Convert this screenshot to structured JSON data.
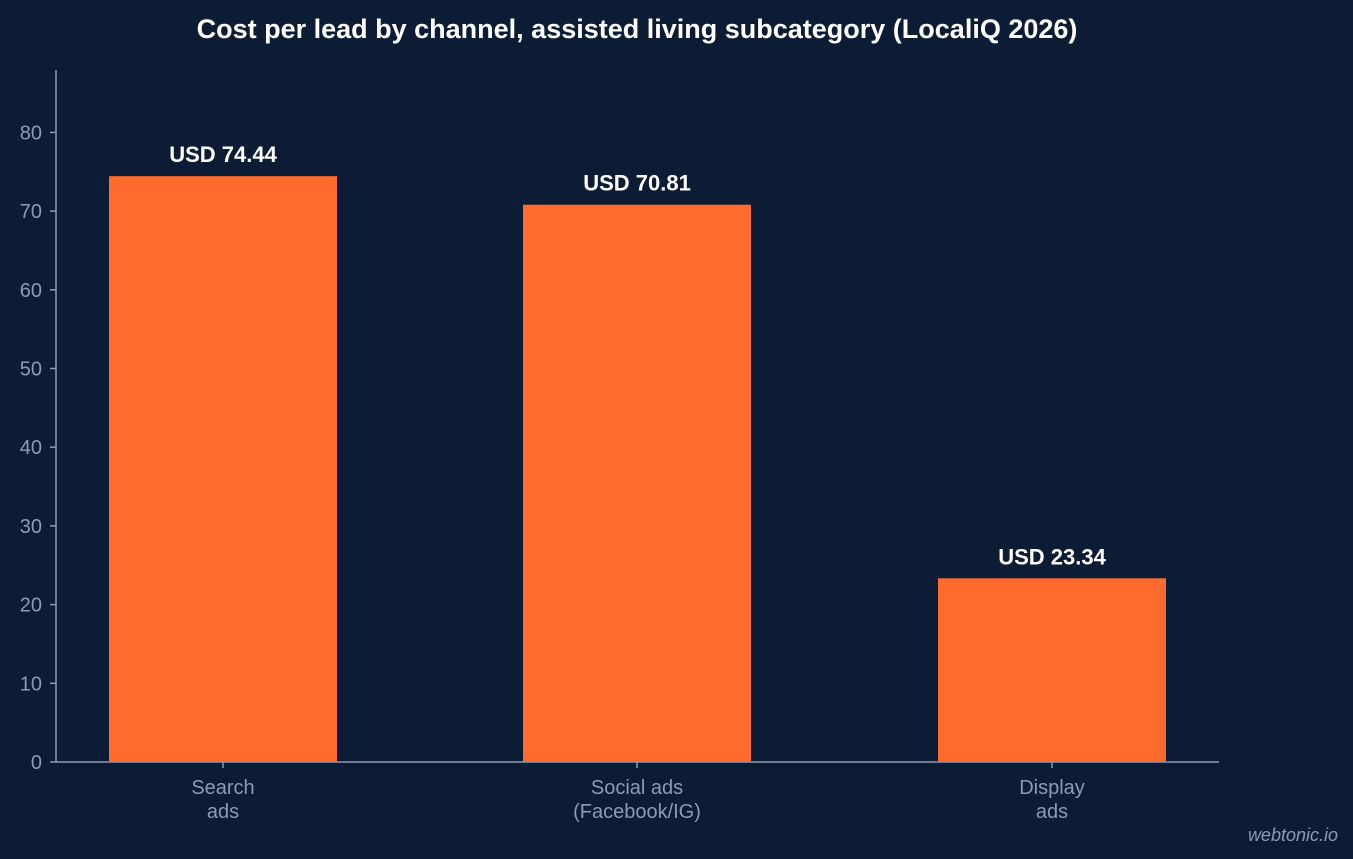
{
  "chart_data": {
    "type": "bar",
    "title": "Cost per lead by channel, assisted living subcategory (LocaliQ 2026)",
    "xlabel": "",
    "ylabel": "",
    "categories": [
      [
        "Search",
        "ads"
      ],
      [
        "Social ads",
        "(Facebook/IG)"
      ],
      [
        "Display",
        "ads"
      ]
    ],
    "values": [
      74.44,
      70.81,
      23.34
    ],
    "value_labels": [
      "USD 74.44",
      "USD 70.81",
      "USD 23.34"
    ],
    "ylim": [
      0,
      88
    ],
    "yticks": [
      0,
      10,
      20,
      30,
      40,
      50,
      60,
      70,
      80
    ],
    "grid": false,
    "legend": "none",
    "colors": {
      "background": "#0c1c35",
      "bar": "#ff6b2c",
      "axis": "#8b9bb4",
      "text": "#ffffff"
    }
  },
  "watermark": "webtonic.io"
}
